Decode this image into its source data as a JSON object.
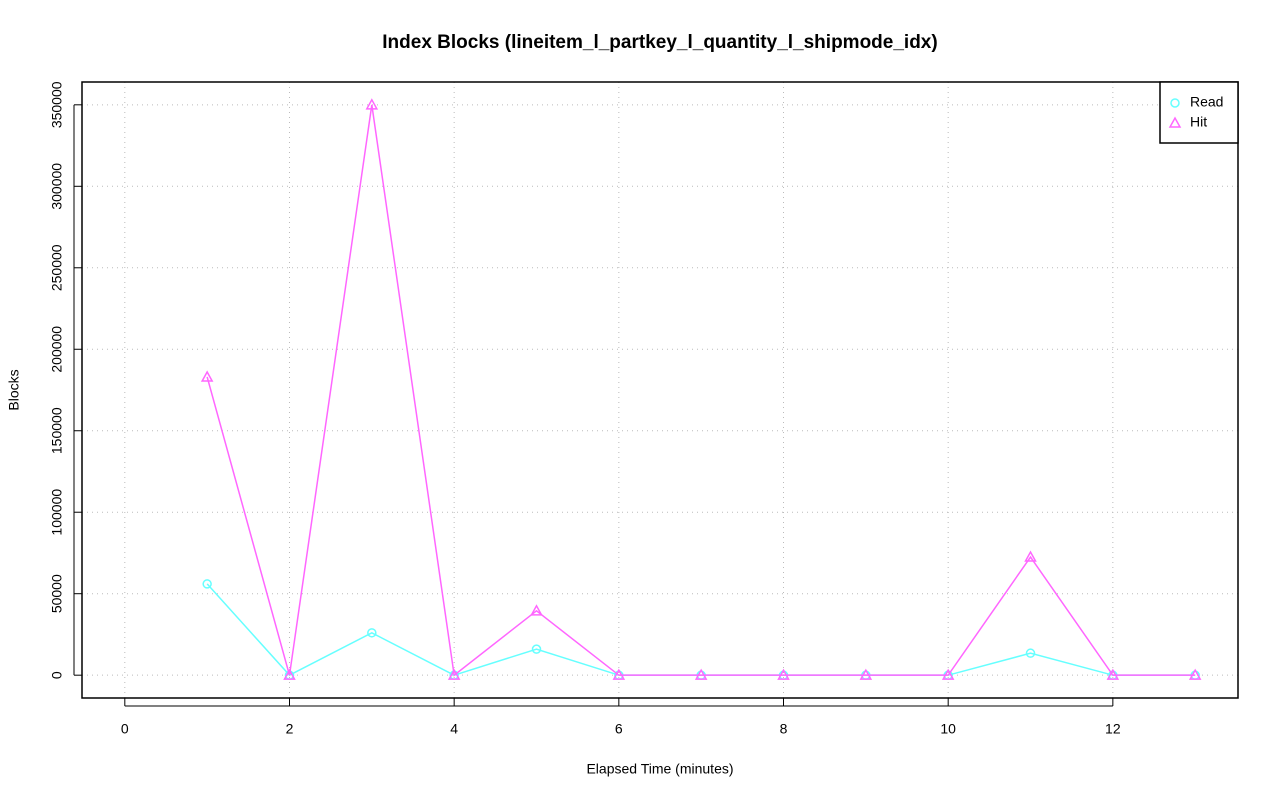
{
  "chart_data": {
    "type": "line",
    "title": "Index Blocks (lineitem_l_partkey_l_quantity_l_shipmode_idx)",
    "x_label": "Elapsed Time (minutes)",
    "y_label": "Blocks",
    "x": [
      1,
      2,
      3,
      4,
      5,
      6,
      7,
      8,
      9,
      10,
      11,
      12,
      13
    ],
    "series": [
      {
        "name": "Read",
        "color": "#66ffff",
        "marker": "circle",
        "values": [
          56000,
          0,
          26000,
          0,
          16000,
          0,
          0,
          0,
          0,
          0,
          13500,
          0,
          0
        ]
      },
      {
        "name": "Hit",
        "color": "#ff66ff",
        "marker": "triangle",
        "values": [
          183000,
          0,
          350000,
          0,
          39500,
          0,
          0,
          0,
          0,
          0,
          72500,
          0,
          0
        ]
      }
    ],
    "xlim": [
      -0.52,
      13.52
    ],
    "ylim": [
      -14000,
      364000
    ],
    "xticks": [
      0,
      2,
      4,
      6,
      8,
      10,
      12
    ],
    "yticks": [
      0,
      50000,
      100000,
      150000,
      200000,
      250000,
      300000,
      350000
    ],
    "grid": true,
    "legend": "top-right"
  }
}
